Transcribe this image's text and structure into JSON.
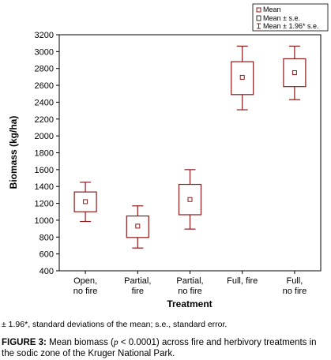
{
  "chart_data": {
    "type": "box",
    "categories": [
      [
        "Open,",
        "no fire"
      ],
      [
        "Partial,",
        "fire"
      ],
      [
        "Partial,",
        "no fire"
      ],
      [
        "Full, fire"
      ],
      [
        "Full,",
        "no fire"
      ]
    ],
    "series": [
      {
        "name": "Mean",
        "values": [
          1220,
          930,
          1245,
          2695,
          2750
        ]
      },
      {
        "name": "Mean ± s.e.",
        "low": [
          1100,
          795,
          1065,
          2490,
          2585
        ],
        "high": [
          1335,
          1050,
          1425,
          2880,
          2915
        ]
      },
      {
        "name": "Mean ± 1.96* s.e.",
        "low": [
          985,
          670,
          895,
          2310,
          2430
        ],
        "high": [
          1450,
          1170,
          1600,
          3065,
          3065
        ]
      }
    ],
    "xlabel": "Treatment",
    "ylabel": "Biomass (kg/ha)",
    "ylim": [
      400,
      3200
    ],
    "yticks": [
      "400",
      "600",
      "800",
      "1000",
      "1200",
      "1400",
      "1600",
      "1800",
      "2000",
      "2200",
      "2400",
      "2600",
      "2800",
      "3000",
      "3200"
    ],
    "grid": false,
    "legend": "top-right",
    "legend_entries": [
      "Mean",
      "Mean ± s.e.",
      "Mean ± 1.96* s.e."
    ],
    "color": "#8b1a1a"
  },
  "footnote": "± 1.96*, standard deviations of the mean; s.e., standard error.",
  "caption": {
    "label": "FIGURE 3:",
    "text_before": " Mean biomass (",
    "p_symbol": "p",
    "text_after": " < 0.0001) across fire and herbivory treatments in the sodic zone of the Kruger National Park."
  }
}
